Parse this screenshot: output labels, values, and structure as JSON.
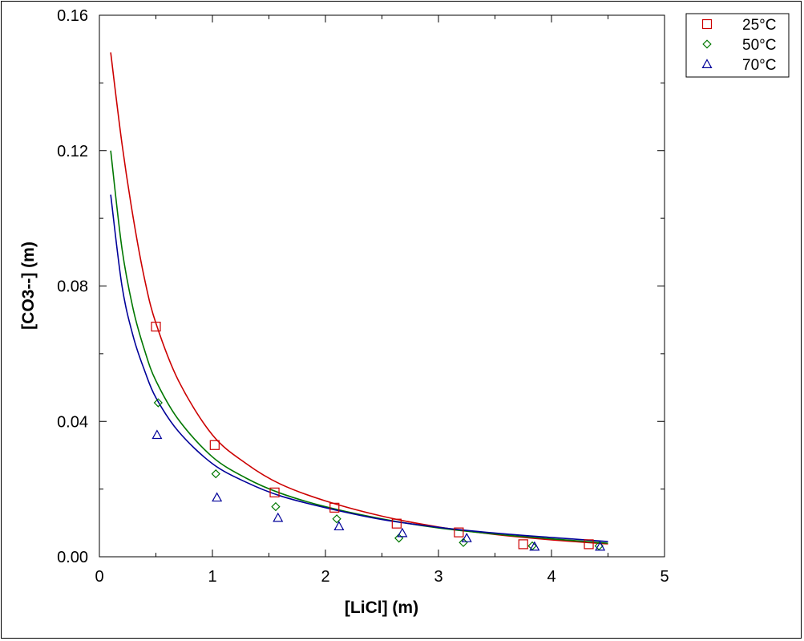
{
  "chart_data": {
    "type": "scatter",
    "xlabel": "[LiCl] (m)",
    "ylabel": "[CO3--] (m)",
    "xlim": [
      0,
      5
    ],
    "ylim": [
      0,
      0.16
    ],
    "xticks": [
      "0",
      "1",
      "2",
      "3",
      "4",
      "5"
    ],
    "xtick_values": [
      0,
      1,
      2,
      3,
      4,
      5
    ],
    "yticks": [
      "0.00",
      "0.04",
      "0.08",
      "0.12",
      "0.16"
    ],
    "ytick_values": [
      0,
      0.04,
      0.08,
      0.12,
      0.16
    ],
    "grid": false,
    "legend_position": "top-right outside plot",
    "series": [
      {
        "name": "25°C",
        "color": "#cc0000",
        "marker": "square",
        "points": [
          {
            "x": 0.5,
            "y": 0.068
          },
          {
            "x": 1.02,
            "y": 0.033
          },
          {
            "x": 1.55,
            "y": 0.019
          },
          {
            "x": 2.08,
            "y": 0.0145
          },
          {
            "x": 2.63,
            "y": 0.0098
          },
          {
            "x": 3.18,
            "y": 0.0072
          },
          {
            "x": 3.75,
            "y": 0.0037
          },
          {
            "x": 4.33,
            "y": 0.0037
          }
        ],
        "curve": [
          {
            "x": 0.1,
            "y": 0.149
          },
          {
            "x": 0.2,
            "y": 0.122
          },
          {
            "x": 0.3,
            "y": 0.1
          },
          {
            "x": 0.4,
            "y": 0.082
          },
          {
            "x": 0.5,
            "y": 0.069
          },
          {
            "x": 0.7,
            "y": 0.052
          },
          {
            "x": 1.0,
            "y": 0.036
          },
          {
            "x": 1.3,
            "y": 0.0275
          },
          {
            "x": 1.6,
            "y": 0.0215
          },
          {
            "x": 2.0,
            "y": 0.0165
          },
          {
            "x": 2.5,
            "y": 0.012
          },
          {
            "x": 3.0,
            "y": 0.0088
          },
          {
            "x": 3.5,
            "y": 0.0066
          },
          {
            "x": 4.0,
            "y": 0.005
          },
          {
            "x": 4.5,
            "y": 0.0038
          }
        ]
      },
      {
        "name": "50°C",
        "color": "#007700",
        "marker": "diamond",
        "points": [
          {
            "x": 0.52,
            "y": 0.0455
          },
          {
            "x": 1.03,
            "y": 0.0245
          },
          {
            "x": 1.56,
            "y": 0.0148
          },
          {
            "x": 2.1,
            "y": 0.0112
          },
          {
            "x": 2.65,
            "y": 0.0055
          },
          {
            "x": 3.22,
            "y": 0.0042
          },
          {
            "x": 3.83,
            "y": 0.0032
          },
          {
            "x": 4.42,
            "y": 0.0032
          }
        ],
        "curve": [
          {
            "x": 0.1,
            "y": 0.12
          },
          {
            "x": 0.2,
            "y": 0.091
          },
          {
            "x": 0.3,
            "y": 0.073
          },
          {
            "x": 0.4,
            "y": 0.061
          },
          {
            "x": 0.5,
            "y": 0.052
          },
          {
            "x": 0.7,
            "y": 0.0405
          },
          {
            "x": 1.0,
            "y": 0.0295
          },
          {
            "x": 1.3,
            "y": 0.0232
          },
          {
            "x": 1.6,
            "y": 0.0188
          },
          {
            "x": 2.0,
            "y": 0.0148
          },
          {
            "x": 2.5,
            "y": 0.0112
          },
          {
            "x": 3.0,
            "y": 0.0085
          },
          {
            "x": 3.5,
            "y": 0.0067
          },
          {
            "x": 4.0,
            "y": 0.0053
          },
          {
            "x": 4.5,
            "y": 0.004
          }
        ]
      },
      {
        "name": "70°C",
        "color": "#000099",
        "marker": "triangle",
        "points": [
          {
            "x": 0.51,
            "y": 0.036
          },
          {
            "x": 1.04,
            "y": 0.0175
          },
          {
            "x": 1.58,
            "y": 0.0115
          },
          {
            "x": 2.12,
            "y": 0.009
          },
          {
            "x": 2.68,
            "y": 0.007
          },
          {
            "x": 3.25,
            "y": 0.0055
          },
          {
            "x": 3.85,
            "y": 0.003
          },
          {
            "x": 4.43,
            "y": 0.003
          }
        ],
        "curve": [
          {
            "x": 0.1,
            "y": 0.107
          },
          {
            "x": 0.2,
            "y": 0.08
          },
          {
            "x": 0.3,
            "y": 0.065
          },
          {
            "x": 0.4,
            "y": 0.055
          },
          {
            "x": 0.5,
            "y": 0.047
          },
          {
            "x": 0.7,
            "y": 0.037
          },
          {
            "x": 1.0,
            "y": 0.0275
          },
          {
            "x": 1.3,
            "y": 0.022
          },
          {
            "x": 1.6,
            "y": 0.018
          },
          {
            "x": 2.0,
            "y": 0.0145
          },
          {
            "x": 2.5,
            "y": 0.011
          },
          {
            "x": 3.0,
            "y": 0.0087
          },
          {
            "x": 3.5,
            "y": 0.007
          },
          {
            "x": 4.0,
            "y": 0.0057
          },
          {
            "x": 4.5,
            "y": 0.0045
          }
        ]
      }
    ]
  }
}
